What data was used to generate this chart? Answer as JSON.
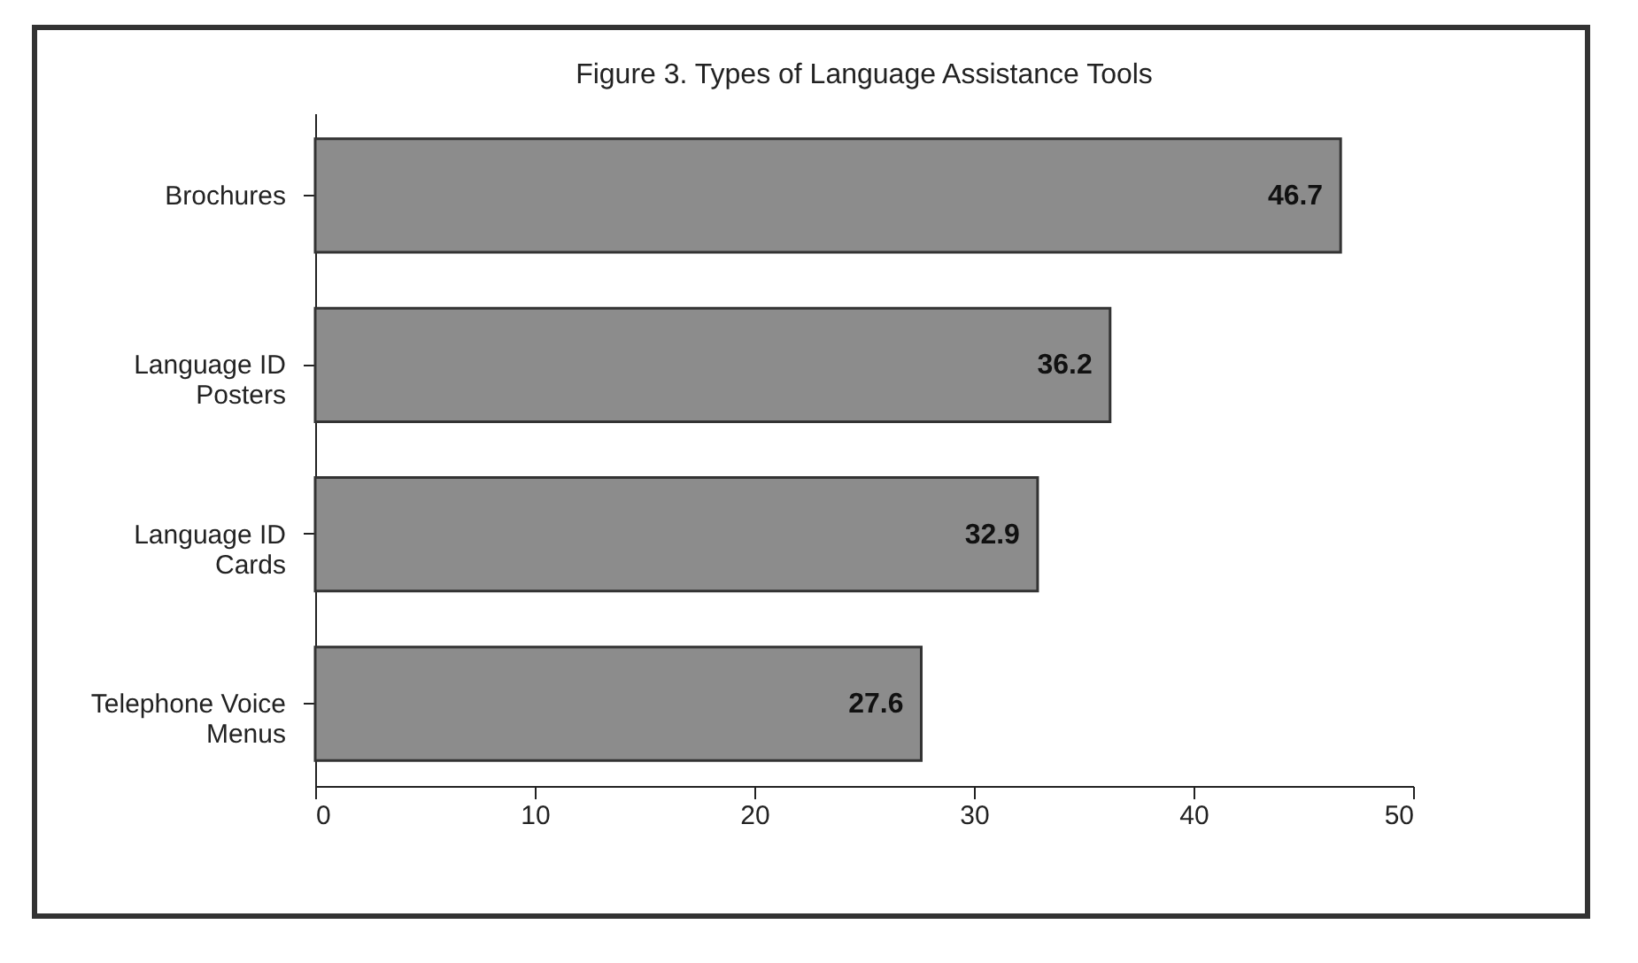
{
  "chart_data": {
    "type": "bar",
    "orientation": "horizontal",
    "title": "Figure 3. Types of Language Assistance Tools",
    "categories": [
      "Brochures",
      "Language ID Posters",
      "Language ID Cards",
      "Telephone Voice Menus"
    ],
    "values": [
      46.7,
      36.2,
      32.9,
      27.6
    ],
    "color": "#8c8c8c",
    "xlim": [
      0,
      50
    ],
    "xticks": [
      0,
      10,
      20,
      30,
      40,
      50
    ],
    "grid": false,
    "data_labels": true
  }
}
